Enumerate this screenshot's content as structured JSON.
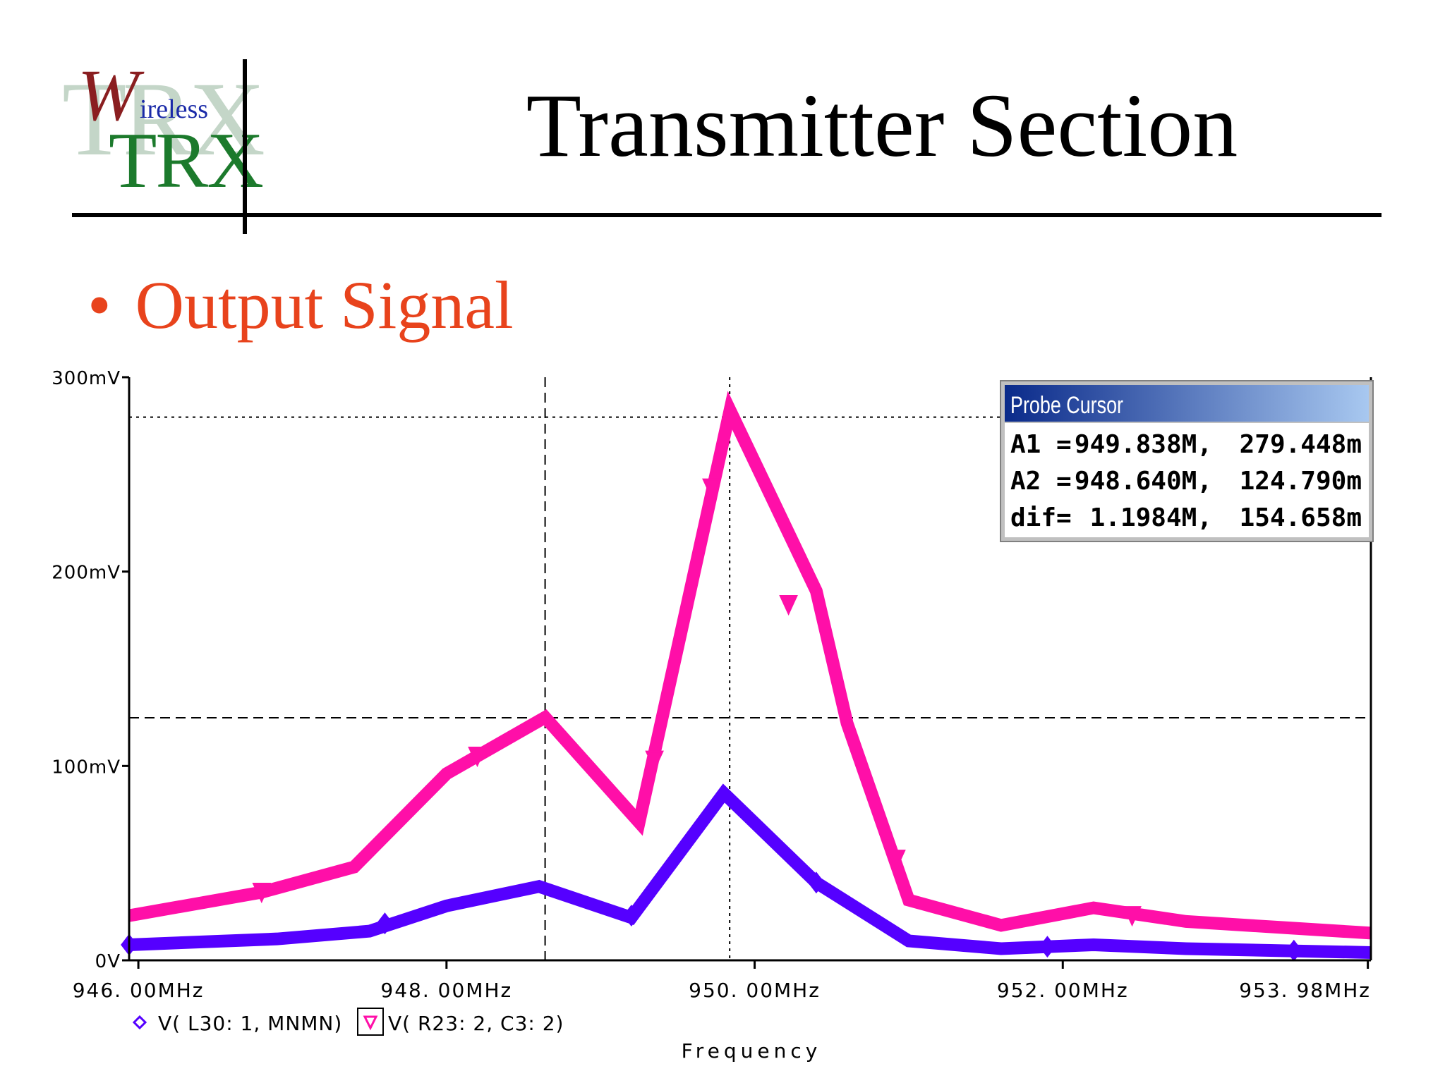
{
  "slide": {
    "title": "Transmitter Section",
    "bullet": "Output Signal",
    "logo": {
      "big": "W",
      "small": "ireless",
      "trx": "TRX",
      "bg": "TRX"
    }
  },
  "colors": {
    "accent": "#e8431c",
    "series1": "#5500ff",
    "series2": "#ff0fa8"
  },
  "probe_cursor": {
    "title": "Probe Cursor",
    "rows": [
      {
        "label": "A1 =",
        "x": "949.838M,",
        "y": "279.448m"
      },
      {
        "label": "A2 =",
        "x": "948.640M,",
        "y": "124.790m"
      },
      {
        "label": "dif=",
        "x": "1.1984M,",
        "y": "154.658m"
      }
    ]
  },
  "chart_data": {
    "type": "line",
    "xlabel": "Frequency",
    "ylabel": "",
    "xlim": [
      945.94,
      954.0
    ],
    "ylim": [
      0,
      300
    ],
    "x_ticks": [
      {
        "value": 946.0,
        "label": "946. 00MHz"
      },
      {
        "value": 948.0,
        "label": "948. 00MHz"
      },
      {
        "value": 950.0,
        "label": "950. 00MHz"
      },
      {
        "value": 952.0,
        "label": "952. 00MHz"
      },
      {
        "value": 953.98,
        "label": "953. 98MHz"
      }
    ],
    "y_ticks": [
      {
        "value": 0,
        "label": "0V"
      },
      {
        "value": 100,
        "label": "100mV"
      },
      {
        "value": 200,
        "label": "200mV"
      },
      {
        "value": 300,
        "label": "300mV"
      }
    ],
    "cursors": {
      "x": [
        948.64,
        949.838
      ],
      "y": [
        124.79,
        279.448
      ]
    },
    "series": [
      {
        "name": "V( L30: 1, MNMN)",
        "color": "#5500ff",
        "marker": "diamond",
        "x": [
          945.94,
          946.9,
          947.5,
          948.0,
          948.6,
          949.2,
          949.8,
          950.4,
          951.0,
          951.6,
          952.2,
          952.8,
          953.4,
          954.0
        ],
        "y": [
          8,
          11,
          15,
          28,
          38,
          22,
          86,
          40,
          10,
          6,
          8,
          6,
          5,
          4
        ],
        "marker_x": [
          945.94,
          947.6,
          949.2,
          950.4,
          951.9,
          953.5
        ],
        "marker_y": [
          8,
          19,
          23,
          40,
          7,
          5
        ]
      },
      {
        "name": "V( R23: 2, C3: 2)",
        "color": "#ff0fa8",
        "marker": "triangle",
        "x": [
          945.94,
          946.8,
          947.4,
          948.0,
          948.64,
          949.25,
          949.84,
          950.4,
          950.6,
          951.0,
          951.6,
          952.2,
          952.8,
          953.4,
          954.0
        ],
        "y": [
          23,
          35,
          48,
          96,
          125,
          71,
          283,
          190,
          122,
          31,
          18,
          27,
          20,
          17,
          14
        ],
        "marker_x": [
          946.8,
          948.2,
          949.35,
          949.72,
          950.22,
          950.92,
          952.45
        ],
        "marker_y": [
          35,
          105,
          103,
          243,
          183,
          52,
          23
        ]
      }
    ]
  }
}
